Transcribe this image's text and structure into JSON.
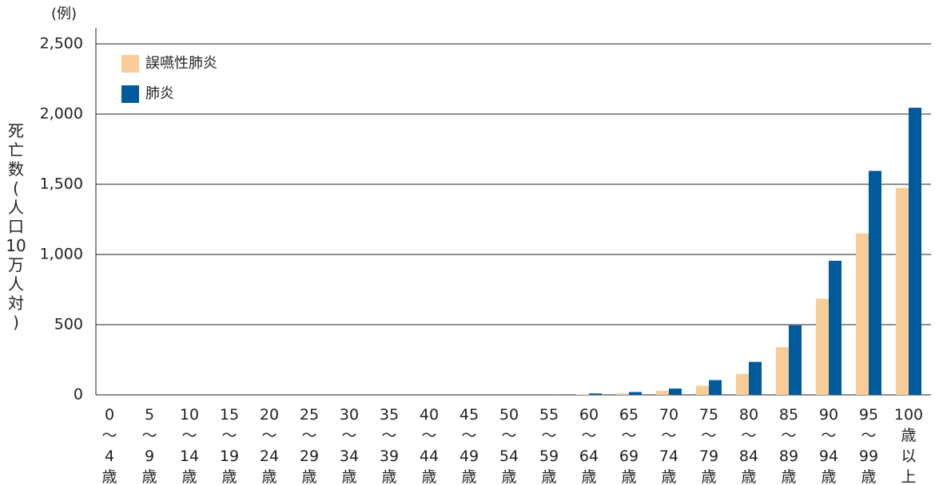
{
  "chart_data": {
    "type": "bar",
    "y_unit": "(例)",
    "y_label": "死亡数(人口10万人対)",
    "categories": [
      "0〜4歳",
      "5〜9歳",
      "10〜14歳",
      "15〜19歳",
      "20〜24歳",
      "25〜29歳",
      "30〜34歳",
      "35〜39歳",
      "40〜44歳",
      "45〜49歳",
      "50〜54歳",
      "55〜59歳",
      "60〜64歳",
      "65〜69歳",
      "70〜74歳",
      "75〜79歳",
      "80〜84歳",
      "85〜89歳",
      "90〜94歳",
      "95〜99歳",
      "100歳以上"
    ],
    "series": [
      {
        "name": "誤嚥性肺炎",
        "color": "#f9cc98",
        "values": [
          0,
          0,
          0,
          0,
          0,
          0,
          0,
          0,
          0,
          0,
          0,
          0,
          3,
          10,
          30,
          65,
          150,
          340,
          685,
          1150,
          1475
        ]
      },
      {
        "name": "肺炎",
        "color": "#005a9c",
        "values": [
          0,
          0,
          0,
          0,
          0,
          0,
          0,
          0,
          0,
          0,
          0,
          1,
          10,
          20,
          45,
          105,
          235,
          495,
          955,
          1595,
          2045
        ]
      }
    ],
    "ylim": [
      0,
      2500
    ],
    "yticks": [
      0,
      {
        "value": 500,
        "label": "500"
      },
      {
        "value": 1000,
        "label": "1,000"
      },
      {
        "value": 1500,
        "label": "1,500"
      },
      {
        "value": 2000,
        "label": "2,000"
      },
      {
        "value": 2500,
        "label": "2,500"
      }
    ],
    "grid": true
  }
}
